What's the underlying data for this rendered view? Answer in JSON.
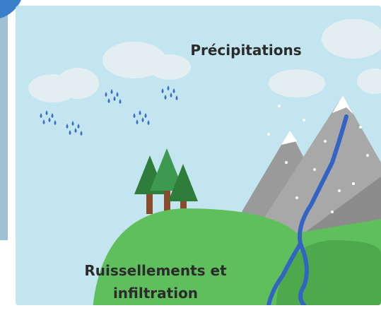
{
  "labels": {
    "precipitation": "Précipitations",
    "runoff": [
      "Ruissellements et",
      "infiltration"
    ]
  }
}
